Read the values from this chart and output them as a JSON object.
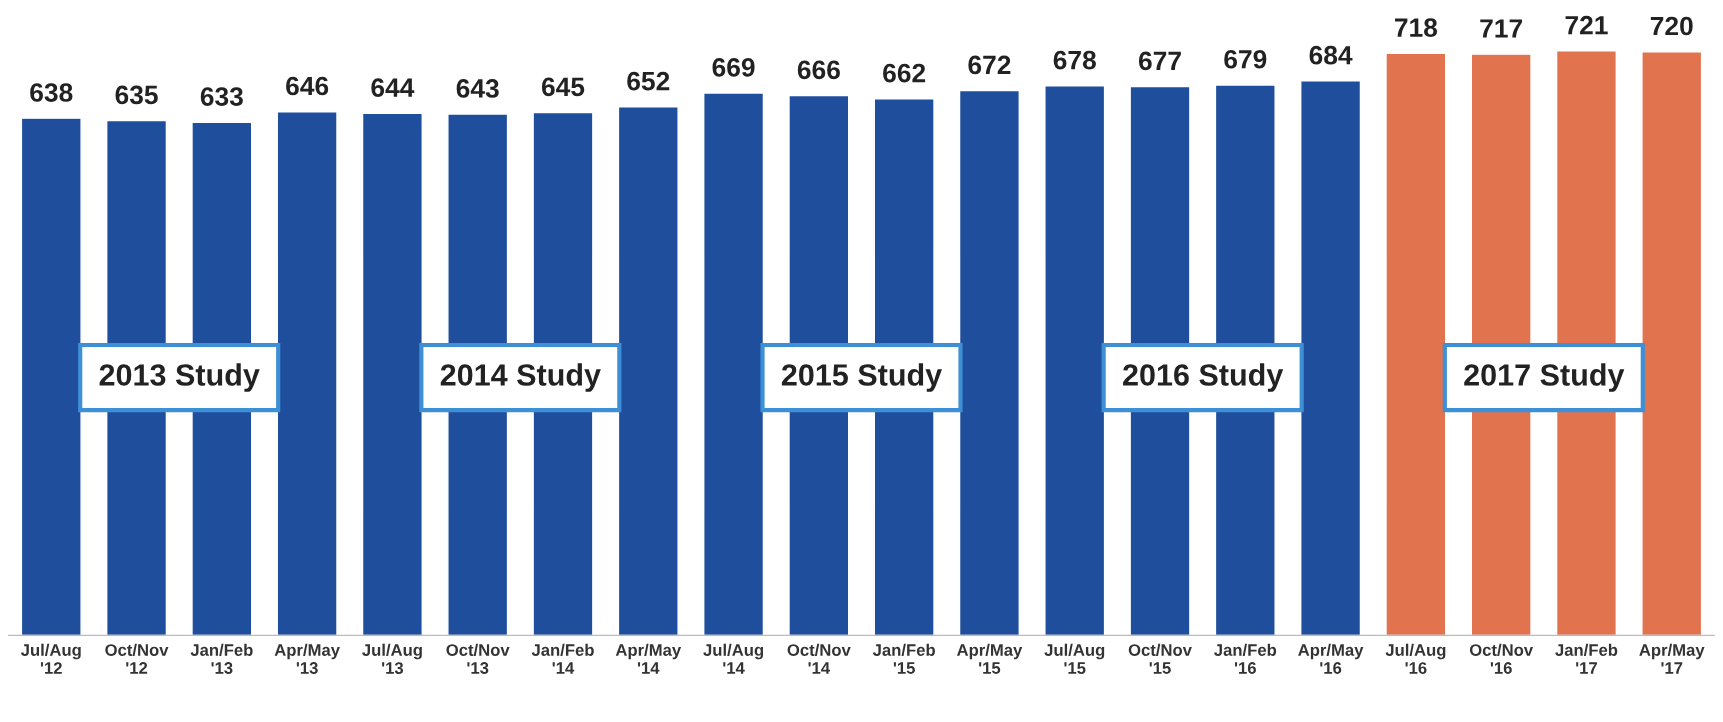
{
  "chart_data": {
    "type": "bar",
    "categories": [
      "Jul/Aug\n'12",
      "Oct/Nov\n'12",
      "Jan/Feb\n'13",
      "Apr/May\n'13",
      "Jul/Aug\n'13",
      "Oct/Nov\n'13",
      "Jan/Feb\n'14",
      "Apr/May\n'14",
      "Jul/Aug\n'14",
      "Oct/Nov\n'14",
      "Jan/Feb\n'15",
      "Apr/May\n'15",
      "Jul/Aug\n'15",
      "Oct/Nov\n'15",
      "Jan/Feb\n'16",
      "Apr/May\n'16",
      "Jul/Aug\n'16",
      "Oct/Nov\n'16",
      "Jan/Feb\n'17",
      "Apr/May\n'17"
    ],
    "values": [
      638,
      635,
      633,
      646,
      644,
      643,
      645,
      652,
      669,
      666,
      662,
      672,
      678,
      677,
      679,
      684,
      718,
      717,
      721,
      720
    ],
    "colors": [
      "#1f4e9c",
      "#1f4e9c",
      "#1f4e9c",
      "#1f4e9c",
      "#1f4e9c",
      "#1f4e9c",
      "#1f4e9c",
      "#1f4e9c",
      "#1f4e9c",
      "#1f4e9c",
      "#1f4e9c",
      "#1f4e9c",
      "#1f4e9c",
      "#1f4e9c",
      "#1f4e9c",
      "#1f4e9c",
      "#e2734f",
      "#e2734f",
      "#e2734f",
      "#e2734f"
    ],
    "data_labels": true,
    "tick_labels": "x",
    "grid": false,
    "legend": false,
    "annotations": [
      "2013 Study",
      "2014 Study",
      "2015 Study",
      "2016 Study",
      "2017 Study"
    ]
  }
}
